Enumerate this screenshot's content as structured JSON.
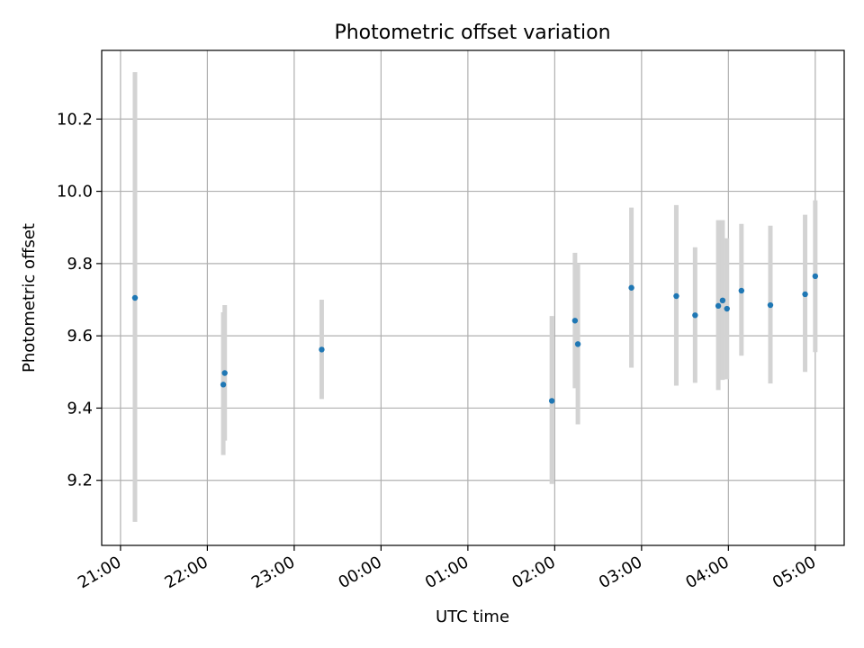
{
  "chart_data": {
    "type": "scatter",
    "title": "Photometric offset variation",
    "xlabel": "UTC time",
    "ylabel": "Photometric offset",
    "x_ticks": [
      "21:00",
      "22:00",
      "23:00",
      "00:00",
      "01:00",
      "02:00",
      "03:00",
      "04:00",
      "05:00"
    ],
    "y_ticks": [
      "9.2",
      "9.4",
      "9.6",
      "9.8",
      "10.0",
      "10.2"
    ],
    "xlim": [
      "20:47",
      "05:20"
    ],
    "ylim": [
      9.02,
      10.39
    ],
    "grid": true,
    "colors": {
      "point": "#1f77b4",
      "errorbar": "#d3d3d3",
      "grid": "#b0b0b0"
    },
    "points": [
      {
        "time": "21:10",
        "value": 9.705,
        "low": 9.085,
        "high": 10.33
      },
      {
        "time": "22:11",
        "value": 9.465,
        "low": 9.27,
        "high": 9.665
      },
      {
        "time": "22:12",
        "value": 9.497,
        "low": 9.31,
        "high": 9.685
      },
      {
        "time": "23:19",
        "value": 9.562,
        "low": 9.425,
        "high": 9.7
      },
      {
        "time": "01:58",
        "value": 9.42,
        "low": 9.19,
        "high": 9.655
      },
      {
        "time": "02:14",
        "value": 9.642,
        "low": 9.455,
        "high": 9.83
      },
      {
        "time": "02:16",
        "value": 9.577,
        "low": 9.355,
        "high": 9.8
      },
      {
        "time": "02:53",
        "value": 9.733,
        "low": 9.512,
        "high": 9.955
      },
      {
        "time": "03:24",
        "value": 9.71,
        "low": 9.462,
        "high": 9.962
      },
      {
        "time": "03:37",
        "value": 9.657,
        "low": 9.47,
        "high": 9.845
      },
      {
        "time": "03:53",
        "value": 9.683,
        "low": 9.45,
        "high": 9.92
      },
      {
        "time": "03:56",
        "value": 9.698,
        "low": 9.478,
        "high": 9.92
      },
      {
        "time": "03:59",
        "value": 9.675,
        "low": 9.48,
        "high": 9.87
      },
      {
        "time": "04:09",
        "value": 9.725,
        "low": 9.545,
        "high": 9.91
      },
      {
        "time": "04:29",
        "value": 9.685,
        "low": 9.468,
        "high": 9.905
      },
      {
        "time": "04:53",
        "value": 9.715,
        "low": 9.5,
        "high": 9.935
      },
      {
        "time": "05:00",
        "value": 9.765,
        "low": 9.555,
        "high": 9.975
      }
    ]
  }
}
